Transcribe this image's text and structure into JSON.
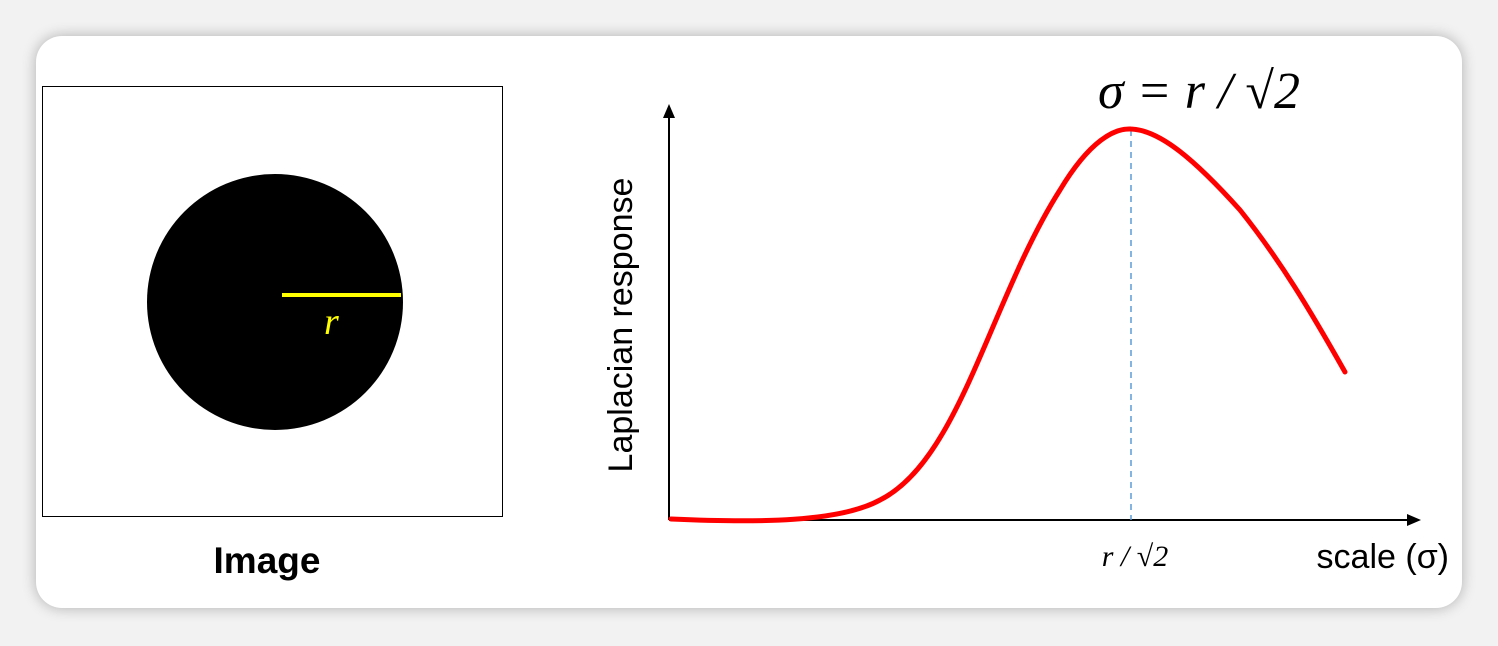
{
  "image_panel": {
    "caption": "Image",
    "radius_label": "r"
  },
  "chart": {
    "ylabel": "Laplacian response",
    "xlabel": "scale (σ)",
    "peak_tick_label": "r / √2",
    "formula": "σ = r / √2",
    "curve_color": "#ff0000",
    "marker_color": "#5b9bd5",
    "radius_color": "#ffff00"
  }
}
